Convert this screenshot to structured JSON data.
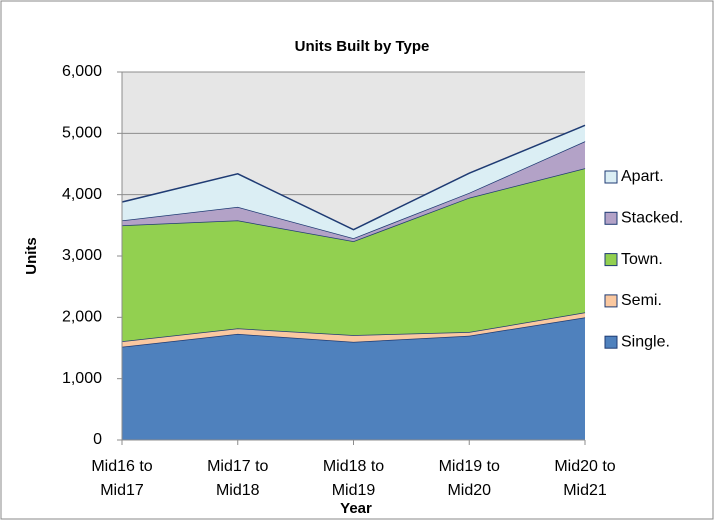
{
  "chart_data": {
    "type": "stacked_area",
    "title": "Units Built by Type",
    "x_label": "Year",
    "y_label": "Units",
    "categories": [
      "Mid16 to Mid17",
      "Mid17 to Mid18",
      "Mid18 to Mid19",
      "Mid19 to Mid20",
      "Mid20 to Mid21"
    ],
    "series": [
      {
        "name": "Single.",
        "color": "#4f81bd",
        "values": [
          1520,
          1730,
          1600,
          1700,
          2000
        ]
      },
      {
        "name": "Semi.",
        "color": "#fac8a0",
        "values": [
          90,
          90,
          110,
          60,
          80
        ]
      },
      {
        "name": "Town.",
        "color": "#92d050",
        "values": [
          1890,
          1760,
          1530,
          2190,
          2350
        ]
      },
      {
        "name": "Stacked.",
        "color": "#b3a2c7",
        "values": [
          80,
          220,
          50,
          80,
          440
        ]
      },
      {
        "name": "Apart.",
        "color": "#dbeef4",
        "values": [
          300,
          540,
          140,
          320,
          260
        ]
      }
    ],
    "ylim": [
      0,
      6000
    ],
    "yticks": [
      0,
      {
        "value": 1000,
        "label": "1,000"
      },
      {
        "value": 2000,
        "label": "2,000"
      },
      {
        "value": 3000,
        "label": "3,000"
      },
      {
        "value": 4000,
        "label": "4,000"
      },
      {
        "value": 5000,
        "label": "5,000"
      },
      {
        "value": 6000,
        "label": "6,000"
      }
    ],
    "grid": true,
    "legend": "right"
  }
}
